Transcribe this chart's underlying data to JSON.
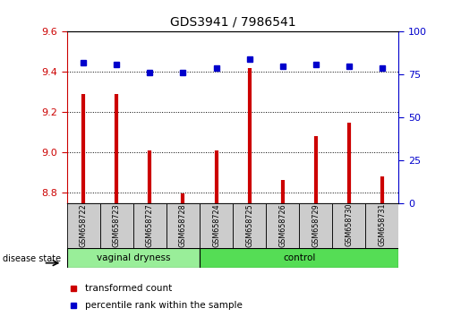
{
  "title": "GDS3941 / 7986541",
  "samples": [
    "GSM658722",
    "GSM658723",
    "GSM658727",
    "GSM658728",
    "GSM658724",
    "GSM658725",
    "GSM658726",
    "GSM658729",
    "GSM658730",
    "GSM658731"
  ],
  "red_values": [
    9.29,
    9.29,
    9.01,
    8.795,
    9.01,
    9.42,
    8.865,
    9.08,
    9.15,
    8.88
  ],
  "blue_values": [
    82,
    81,
    76,
    76,
    79,
    84,
    80,
    81,
    80,
    79
  ],
  "ylim_left": [
    8.75,
    9.6
  ],
  "ylim_right": [
    0,
    100
  ],
  "yticks_left": [
    8.8,
    9.0,
    9.2,
    9.4,
    9.6
  ],
  "yticks_right": [
    0,
    25,
    50,
    75,
    100
  ],
  "bar_color": "#CC0000",
  "dot_color": "#0000CC",
  "tick_color_left": "#CC0000",
  "tick_color_right": "#0000CC",
  "legend_red_label": "transformed count",
  "legend_blue_label": "percentile rank within the sample",
  "disease_state_label": "disease state",
  "group_box_color": "#CCCCCC",
  "vaginal_color": "#99EE99",
  "control_color": "#55DD55",
  "vaginal_count": 4,
  "control_count": 6
}
